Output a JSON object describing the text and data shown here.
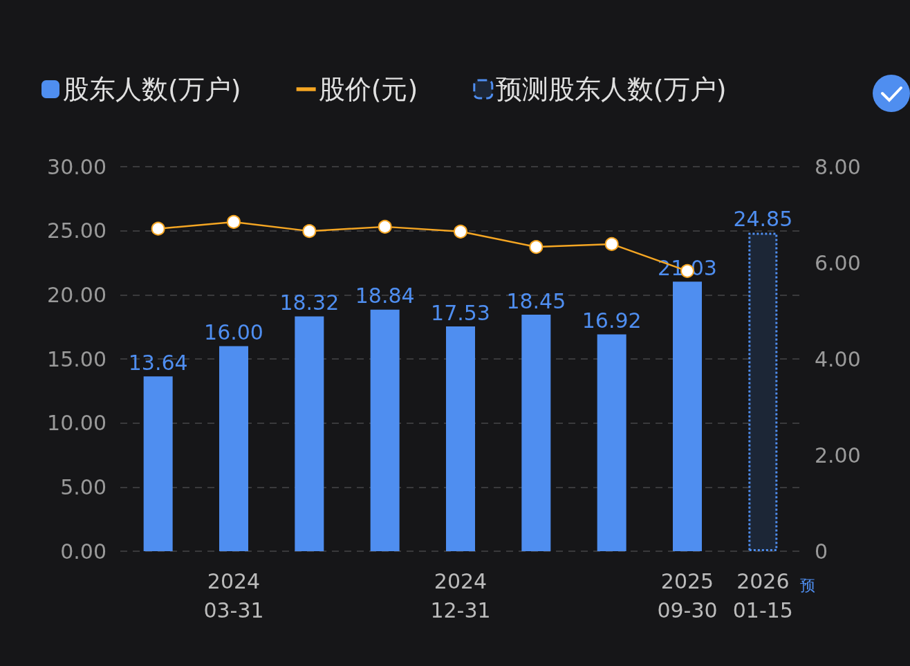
{
  "chart_data": {
    "type": "bar",
    "categories": [
      null,
      "2024\n03-31",
      null,
      null,
      "2024\n12-31",
      null,
      null,
      "2025\n09-30",
      "2026\n01-15"
    ],
    "series": [
      {
        "name": "股东人数(万户)",
        "color": "#4f8ef0",
        "values": [
          13.64,
          16,
          18.32,
          18.84,
          17.53,
          18.45,
          16.92,
          21.03,
          null
        ],
        "value_labels": [
          "13.64",
          "16.00",
          "18.32",
          "18.84",
          "17.53",
          "18.45",
          "16.92",
          "21.03",
          null
        ]
      },
      {
        "name": "股价(元)",
        "type": "line",
        "axis": "y2",
        "color": "#f5a623",
        "values": [
          6.71,
          6.85,
          6.66,
          6.75,
          6.65,
          6.33,
          6.39,
          5.83,
          null
        ]
      },
      {
        "name": "预测股东人数(万户)",
        "color": "#1c2636",
        "values": [
          null,
          null,
          null,
          null,
          null,
          null,
          null,
          null,
          24.85
        ],
        "value_labels": [
          null,
          null,
          null,
          null,
          null,
          null,
          null,
          null,
          "24.85"
        ]
      }
    ],
    "ylim": [
      0,
      30
    ],
    "yticks": [
      {
        "value": 0,
        "label": "0.00"
      },
      {
        "value": 5,
        "label": "5.00"
      },
      {
        "value": 10,
        "label": "10.00"
      },
      {
        "value": 15,
        "label": "15.00"
      },
      {
        "value": 20,
        "label": "20.00"
      },
      {
        "value": 25,
        "label": "25.00"
      },
      {
        "value": 30,
        "label": "30.00"
      }
    ],
    "y2lim": [
      0,
      8
    ],
    "y2ticks": [
      0,
      {
        "value": 2,
        "label": "2.00"
      },
      {
        "value": 4,
        "label": "4.00"
      },
      {
        "value": 6,
        "label": "6.00"
      },
      {
        "value": 8,
        "label": "8.00"
      }
    ],
    "annotations": [
      "预"
    ],
    "grid": "y",
    "legend": "top",
    "marker": "circle",
    "stacked": true
  }
}
